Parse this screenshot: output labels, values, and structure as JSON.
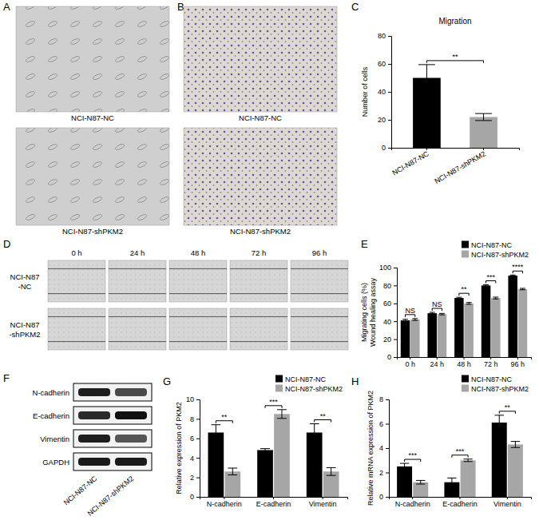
{
  "figure": {
    "panel_labels": [
      "A",
      "B",
      "C",
      "D",
      "E",
      "F",
      "G",
      "H"
    ],
    "panel_a": {
      "captions": [
        "NCI-N87-NC",
        "NCI-N87-shPKM2"
      ]
    },
    "panel_b": {
      "captions": [
        "NCI-N87-NC",
        "NCI-N87-shPKM2"
      ]
    },
    "panel_d": {
      "columns": [
        "0 h",
        "24 h",
        "48 h",
        "72 h",
        "96 h"
      ],
      "rows": [
        [
          "NCI-N87",
          "-NC"
        ],
        [
          "NCI-N87",
          "-shPKM2"
        ]
      ]
    },
    "panel_f": {
      "proteins": [
        "N-cadherin",
        "E-cadherin",
        "Vimentin",
        "GAPDH"
      ],
      "lanes": [
        "NCI-N87-NC",
        "NCI-N87-shPKM2"
      ]
    }
  },
  "chart_data": [
    {
      "type": "bar",
      "title": "Migration",
      "y_label": "Number of cells",
      "categories": [
        "NCI-N87-NC",
        "NCI-N87-shPKM2"
      ],
      "values": [
        50,
        22
      ],
      "errors": [
        9.5,
        2.5
      ],
      "colors": [
        "#000000",
        "#a6a6a6"
      ],
      "ylim": [
        0,
        80
      ],
      "yticks": [
        0,
        20,
        40,
        60,
        80
      ],
      "significance": [
        "**"
      ]
    },
    {
      "type": "bar",
      "y_label": [
        "Migrating cells (%)",
        "Wound healing assay"
      ],
      "categories": [
        "0 h",
        "24 h",
        "48 h",
        "72 h",
        "96 h"
      ],
      "series": [
        {
          "name": "NCI-N87-NC",
          "color": "#000000",
          "values": [
            41,
            49,
            66,
            80,
            91
          ],
          "errors": [
            1.2,
            1,
            0.8,
            0.8,
            0.7
          ]
        },
        {
          "name": "NCI-N87-shPKM2",
          "color": "#a6a6a6",
          "values": [
            42,
            48,
            60,
            66,
            76
          ],
          "errors": [
            1,
            0.8,
            1,
            1,
            0.8
          ]
        }
      ],
      "ylim": [
        0,
        100
      ],
      "yticks": [
        0,
        20,
        40,
        60,
        80,
        100
      ],
      "legend": "top-right",
      "significance": [
        "NS",
        "NS",
        "**",
        "***",
        "****"
      ]
    },
    {
      "type": "bar",
      "y_label": "Relative expression of PKM2",
      "categories": [
        "N-cadherin",
        "E-cadherin",
        "Vimentin"
      ],
      "series": [
        {
          "name": "NCI-N87-NC",
          "color": "#000000",
          "values": [
            6.6,
            4.8,
            6.6
          ],
          "errors": [
            0.8,
            0.15,
            0.9
          ]
        },
        {
          "name": "NCI-N87-shPKM2",
          "color": "#a6a6a6",
          "values": [
            2.6,
            8.5,
            2.6
          ],
          "errors": [
            0.35,
            0.45,
            0.4
          ]
        }
      ],
      "ylim": [
        0,
        10
      ],
      "yticks": [
        0,
        2,
        4,
        6,
        8,
        10
      ],
      "legend": "top-right",
      "significance": [
        "**",
        "***",
        "**"
      ]
    },
    {
      "type": "bar",
      "y_label": "Relative mRNA expression of PKM2",
      "categories": [
        "N-cadherin",
        "E-cadherin",
        "Vimentin"
      ],
      "series": [
        {
          "name": "NCI-N87-NC",
          "color": "#000000",
          "values": [
            2.5,
            1.2,
            6.1
          ],
          "errors": [
            0.25,
            0.35,
            0.6
          ]
        },
        {
          "name": "NCI-N87-shPKM2",
          "color": "#a6a6a6",
          "values": [
            1.2,
            3.0,
            4.3
          ],
          "errors": [
            0.15,
            0.1,
            0.25
          ]
        }
      ],
      "ylim": [
        0,
        8
      ],
      "yticks": [
        0,
        2,
        4,
        6,
        8
      ],
      "legend": "top-right",
      "significance": [
        "***",
        "***",
        "**"
      ]
    }
  ]
}
